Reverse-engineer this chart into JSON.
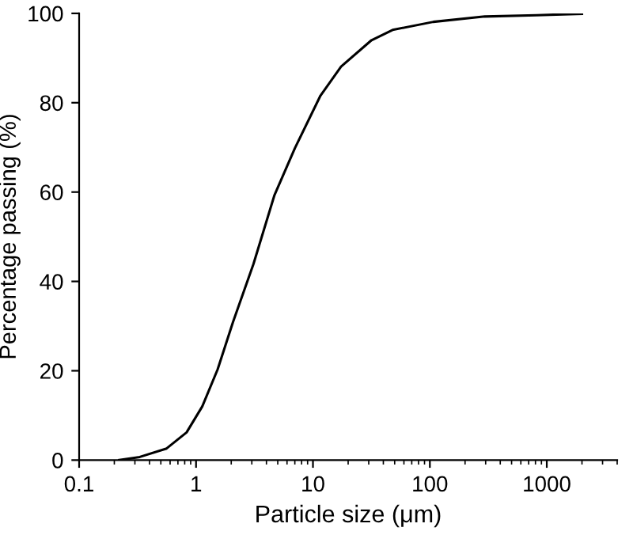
{
  "chart_data": {
    "type": "line",
    "xlabel": "Particle size (μm)",
    "ylabel": "Percentage passing (%)",
    "log": "x",
    "x": [
      0.22,
      0.33,
      0.56,
      0.83,
      1.13,
      1.53,
      2.07,
      3.1,
      4.67,
      7.0,
      11.6,
      17.4,
      31.7,
      48,
      107,
      295,
      815,
      2000
    ],
    "series": [
      {
        "color": "#000000",
        "values": [
          0,
          0.7,
          2.6,
          6.2,
          12,
          20.3,
          30.9,
          43.9,
          59.2,
          69.8,
          81.6,
          88.1,
          94.0,
          96.3,
          98.1,
          99.3,
          99.6,
          99.9
        ]
      }
    ],
    "xlim": [
      0.1,
      4000
    ],
    "xticks": [
      0.1,
      1,
      10,
      100,
      1000
    ],
    "ylim": [
      0,
      100
    ],
    "yticks": [
      0,
      20,
      40,
      60,
      80,
      100
    ],
    "grid": false,
    "legend": false,
    "marker": "none",
    "line_style": "solid"
  }
}
